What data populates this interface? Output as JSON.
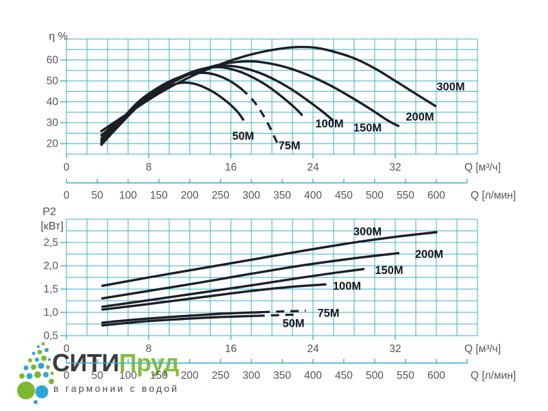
{
  "colors": {
    "grid": "#35aecd",
    "curve": "#1c1f26",
    "tick_text": "#54555a",
    "logo_green": "#7cb830",
    "logo_blue": "#2ca6d8",
    "logo_dark": "#3b3c3e"
  },
  "logo": {
    "brand_part1": "СИТИ",
    "brand_part2": "Пруд",
    "tagline": "в гармонии с водой"
  },
  "chart_data": [
    {
      "id": "efficiency",
      "type": "line",
      "ylabel_lines": [
        "η %"
      ],
      "y_axis": {
        "range": [
          15,
          70
        ],
        "major_ticks": [
          20,
          30,
          40,
          50,
          60
        ],
        "tick_labels": [
          "20",
          "30",
          "40",
          "50",
          "60"
        ],
        "minor_step": 5
      },
      "x_axis_primary": {
        "label": "Q [м³/ч]",
        "range": [
          0,
          40
        ],
        "ticks": [
          0,
          8,
          16,
          24,
          32
        ],
        "tick_labels": [
          "0",
          "8",
          "16",
          "24",
          "32"
        ],
        "minor_step": 2
      },
      "x_axis_secondary": {
        "label": "Q [л/мин]",
        "range": [
          0,
          666.7
        ],
        "ticks": [
          0,
          50,
          100,
          150,
          200,
          250,
          300,
          350,
          400,
          450,
          500,
          550,
          600
        ],
        "tick_labels": [
          "0",
          "50",
          "100",
          "150",
          "200",
          "250",
          "300",
          "350",
          "400",
          "450",
          "500",
          "550",
          "600"
        ],
        "tick_step": 50,
        "axis_end": 650
      },
      "series": [
        {
          "name": "50M",
          "points": [
            [
              3.4,
              19.5
            ],
            [
              5,
              28
            ],
            [
              7,
              38
            ],
            [
              9,
              45
            ],
            [
              10.8,
              48.8
            ],
            [
              12.3,
              48.8
            ],
            [
              14,
              45.5
            ],
            [
              15.5,
              40.5
            ],
            [
              16.6,
              35.5
            ],
            [
              17.2,
              31.5
            ]
          ],
          "dashed_tail": [],
          "label": {
            "text": "50M",
            "q": 17.2,
            "v": 23.8
          }
        },
        {
          "name": "75M",
          "points": [
            [
              3.4,
              20.5
            ],
            [
              5,
              29.5
            ],
            [
              7,
              40
            ],
            [
              9,
              47
            ],
            [
              11,
              51.8
            ],
            [
              12.8,
              53.8
            ],
            [
              14.3,
              53.2
            ],
            [
              15.8,
              50.3
            ],
            [
              17,
              46.3
            ]
          ],
          "dashed_tail": [
            [
              17,
              46.3
            ],
            [
              18.2,
              40.5
            ],
            [
              19.4,
              31.5
            ],
            [
              20.5,
              20.5
            ]
          ],
          "label": {
            "text": "75M",
            "q": 21.7,
            "v": 19.3
          }
        },
        {
          "name": "100M",
          "points": [
            [
              3.4,
              21.5
            ],
            [
              6,
              34
            ],
            [
              9,
              46
            ],
            [
              11.5,
              52.8
            ],
            [
              13.5,
              56
            ],
            [
              15,
              56.5
            ],
            [
              16.5,
              55
            ],
            [
              18,
              52
            ],
            [
              19.5,
              47.8
            ],
            [
              21,
              42.3
            ],
            [
              22.3,
              36.8
            ],
            [
              22.9,
              33.8
            ]
          ],
          "dashed_tail": [],
          "label": {
            "text": "100M",
            "q": 25.6,
            "v": 29.7
          }
        },
        {
          "name": "150M",
          "points": [
            [
              3.4,
              22.5
            ],
            [
              6,
              34.5
            ],
            [
              9,
              46.3
            ],
            [
              12,
              53.8
            ],
            [
              14,
              56.5
            ],
            [
              15.6,
              57.2
            ],
            [
              17.2,
              56.2
            ],
            [
              18.8,
              53.8
            ],
            [
              20.3,
              50.5
            ],
            [
              21.8,
              46.3
            ],
            [
              23.3,
              41.3
            ],
            [
              24.8,
              35.8
            ],
            [
              25.9,
              31.3
            ]
          ],
          "dashed_tail": [],
          "label": {
            "text": "150M",
            "q": 29.3,
            "v": 27.8
          }
        },
        {
          "name": "200M",
          "points": [
            [
              3.4,
              24
            ],
            [
              6,
              34.5
            ],
            [
              9,
              45.5
            ],
            [
              12,
              53.3
            ],
            [
              14.5,
              57.3
            ],
            [
              16.5,
              59
            ],
            [
              18.2,
              59.3
            ],
            [
              19.8,
              58.3
            ],
            [
              21.5,
              56.3
            ],
            [
              23.5,
              52.8
            ],
            [
              25.5,
              48.3
            ],
            [
              27.5,
              42.8
            ],
            [
              29.5,
              36.8
            ],
            [
              31.3,
              31
            ],
            [
              32.3,
              28.5
            ]
          ],
          "dashed_tail": [],
          "label": {
            "text": "200M",
            "q": 34.4,
            "v": 33.0
          }
        },
        {
          "name": "300M",
          "points": [
            [
              3.4,
              26
            ],
            [
              6,
              34.5
            ],
            [
              9,
              44
            ],
            [
              12,
              51.8
            ],
            [
              15,
              58
            ],
            [
              17,
              61.3
            ],
            [
              19,
              63.8
            ],
            [
              21,
              65.5
            ],
            [
              22.7,
              66.2
            ],
            [
              24.3,
              65.8
            ],
            [
              26,
              64
            ],
            [
              28,
              60.8
            ],
            [
              30,
              56
            ],
            [
              32,
              50
            ],
            [
              34,
              43.8
            ],
            [
              35.9,
              38
            ]
          ],
          "dashed_tail": [],
          "label": {
            "text": "300M",
            "q": 37.4,
            "v": 47.4
          }
        }
      ]
    },
    {
      "id": "power",
      "type": "line",
      "ylabel_lines": [
        "P2",
        "[кВт]"
      ],
      "y_axis": {
        "range": [
          0.5,
          3.0
        ],
        "major_ticks": [
          0.5,
          1.0,
          1.5,
          2.0,
          2.5
        ],
        "tick_labels": [
          "0,5",
          "1,0",
          "1,5",
          "2,0",
          "2,5"
        ],
        "minor_step": 0.25
      },
      "x_axis_primary": {
        "label": "Q [м³/ч]",
        "range": [
          0,
          40
        ],
        "ticks": [
          0,
          8,
          16,
          24,
          32
        ],
        "tick_labels": [
          "0",
          "8",
          "16",
          "24",
          "32"
        ],
        "minor_step": 2
      },
      "x_axis_secondary": {
        "label": "Q [л/мин]",
        "range": [
          0,
          666.7
        ],
        "ticks": [
          0,
          50,
          100,
          150,
          200,
          250,
          300,
          350,
          400,
          450,
          500,
          550,
          600
        ],
        "tick_labels": [
          "0",
          "50",
          "100",
          "150",
          "200",
          "250",
          "300",
          "350",
          "400",
          "450",
          "500",
          "550",
          "600"
        ],
        "tick_step": 50,
        "axis_end": 650
      },
      "series": [
        {
          "name": "50M",
          "points": [
            [
              3.5,
              0.72
            ],
            [
              7,
              0.795
            ],
            [
              11,
              0.855
            ],
            [
              14,
              0.89
            ],
            [
              17,
              0.915
            ],
            [
              18.5,
              0.925
            ]
          ],
          "dashed_tail": [
            [
              18.5,
              0.925
            ],
            [
              22.6,
              0.955
            ]
          ],
          "label": {
            "text": "50M",
            "q": 22.1,
            "v": 0.77
          }
        },
        {
          "name": "75M",
          "points": [
            [
              3.5,
              0.78
            ],
            [
              7,
              0.85
            ],
            [
              11,
              0.915
            ],
            [
              15,
              0.97
            ],
            [
              19,
              1.005
            ]
          ],
          "dashed_tail": [
            [
              19,
              1.005
            ],
            [
              23.3,
              1.035
            ]
          ],
          "label": {
            "text": "75M",
            "q": 25.5,
            "v": 0.99
          }
        },
        {
          "name": "100M",
          "points": [
            [
              3.5,
              1.06
            ],
            [
              8,
              1.18
            ],
            [
              13,
              1.32
            ],
            [
              18,
              1.46
            ],
            [
              22,
              1.55
            ],
            [
              25.2,
              1.6
            ]
          ],
          "dashed_tail": [],
          "label": {
            "text": "100M",
            "q": 27.3,
            "v": 1.57
          }
        },
        {
          "name": "150M",
          "points": [
            [
              3.5,
              1.12
            ],
            [
              8,
              1.26
            ],
            [
              13,
              1.42
            ],
            [
              18,
              1.58
            ],
            [
              23,
              1.75
            ],
            [
              26.5,
              1.86
            ],
            [
              28.9,
              1.93
            ]
          ],
          "dashed_tail": [],
          "label": {
            "text": "150M",
            "q": 31.4,
            "v": 1.91
          }
        },
        {
          "name": "200M",
          "points": [
            [
              3.5,
              1.3
            ],
            [
              8,
              1.46
            ],
            [
              13,
              1.64
            ],
            [
              18,
              1.83
            ],
            [
              23,
              2.01
            ],
            [
              28,
              2.16
            ],
            [
              32.3,
              2.27
            ]
          ],
          "dashed_tail": [],
          "label": {
            "text": "200M",
            "q": 35.3,
            "v": 2.26
          }
        },
        {
          "name": "300M",
          "points": [
            [
              3.5,
              1.57
            ],
            [
              8,
              1.75
            ],
            [
              13,
              1.94
            ],
            [
              18,
              2.13
            ],
            [
              23,
              2.32
            ],
            [
              28,
              2.5
            ],
            [
              32,
              2.62
            ],
            [
              36,
              2.72
            ]
          ],
          "dashed_tail": [],
          "label": {
            "text": "300M",
            "q": 29.3,
            "v": 2.74
          }
        }
      ]
    }
  ]
}
